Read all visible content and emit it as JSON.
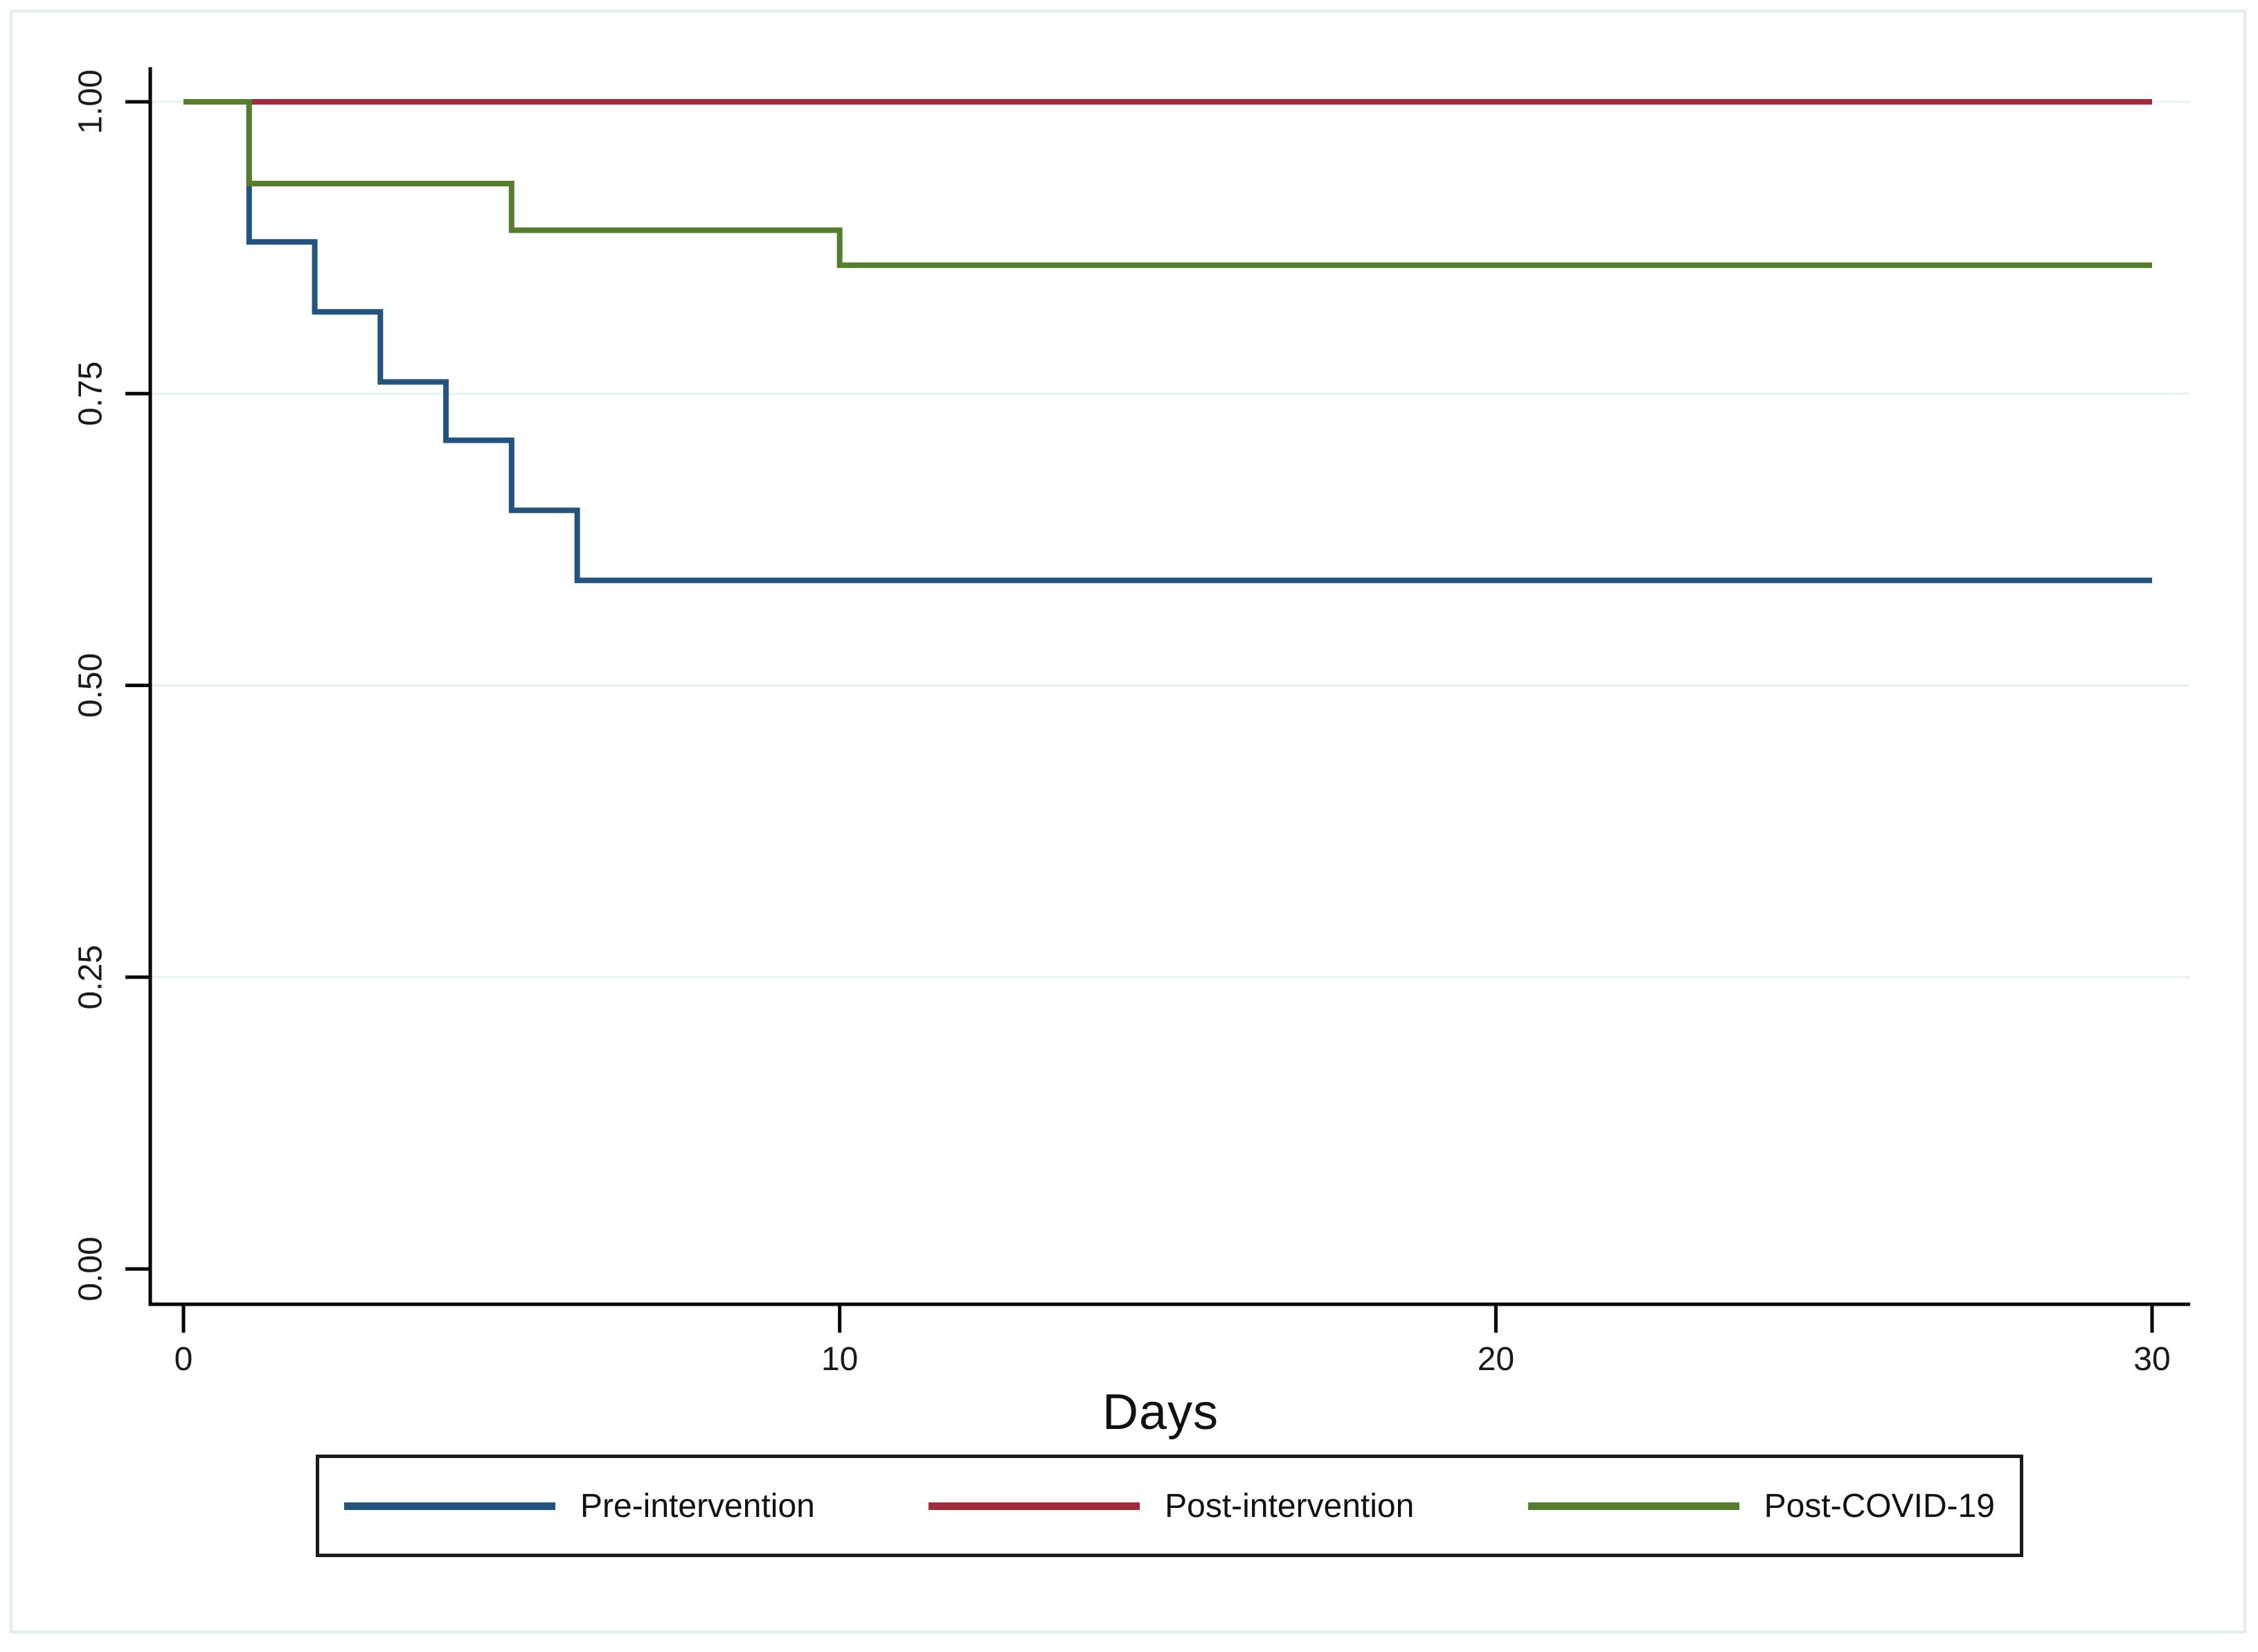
{
  "figure": {
    "background": "#ffffff",
    "frame_border_color": "#e2edf0"
  },
  "chart_data": {
    "type": "line",
    "subtype": "step-survival",
    "title": "",
    "xlabel": "Days",
    "ylabel": "",
    "xlim": [
      0,
      30
    ],
    "ylim": [
      0.0,
      1.0
    ],
    "grid": "horizontal",
    "grid_color": "#e7f1f3",
    "axis_color": "#000000",
    "tick_label_color": "#1a1a1a",
    "x_ticks": [
      {
        "label": "0",
        "value": 0
      },
      {
        "label": "10",
        "value": 10
      },
      {
        "label": "20",
        "value": 20
      },
      {
        "label": "30",
        "value": 30
      }
    ],
    "y_ticks": [
      {
        "label": "0.00",
        "value": 0.0
      },
      {
        "label": "0.25",
        "value": 0.25
      },
      {
        "label": "0.50",
        "value": 0.5
      },
      {
        "label": "0.75",
        "value": 0.75
      },
      {
        "label": "1.00",
        "value": 1.0
      }
    ],
    "grid_values": [
      0.25,
      0.5,
      0.75,
      1.0
    ],
    "legend_position": "bottom",
    "series": [
      {
        "name": "Pre-intervention",
        "color": "#24537d",
        "points": [
          [
            0,
            1.0
          ],
          [
            1,
            0.88
          ],
          [
            2,
            0.82
          ],
          [
            3,
            0.76
          ],
          [
            4,
            0.71
          ],
          [
            5,
            0.65
          ],
          [
            6,
            0.59
          ],
          [
            30,
            0.59
          ]
        ]
      },
      {
        "name": "Post-intervention",
        "color": "#a02c3c",
        "points": [
          [
            0,
            1.0
          ],
          [
            30,
            1.0
          ]
        ]
      },
      {
        "name": "Post-COVID-19",
        "color": "#567d2e",
        "points": [
          [
            0,
            1.0
          ],
          [
            1,
            0.93
          ],
          [
            5,
            0.89
          ],
          [
            10,
            0.86
          ],
          [
            30,
            0.86
          ]
        ]
      }
    ]
  }
}
